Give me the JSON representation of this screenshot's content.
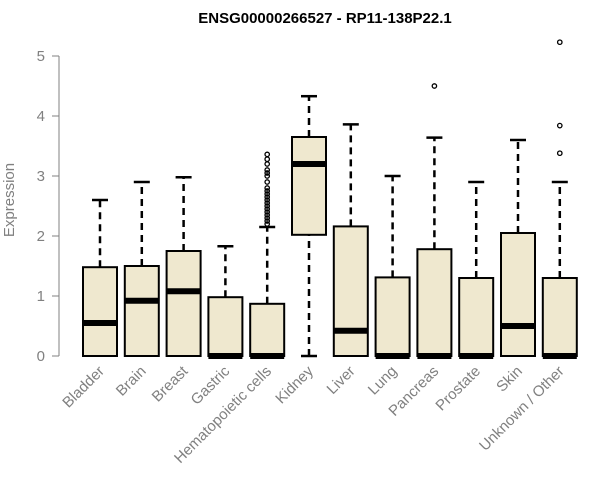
{
  "chart_data": {
    "type": "box",
    "title": "ENSG00000266527 - RP11-138P22.1",
    "ylabel": "Expression",
    "xlabel": "",
    "ylim": [
      0,
      5.3
    ],
    "yticks": [
      0,
      1,
      2,
      3,
      4,
      5
    ],
    "box_fill": "#efe8cf",
    "categories": [
      "Bladder",
      "Brain",
      "Breast",
      "Gastric",
      "Hematopoietic cells",
      "Kidney",
      "Liver",
      "Lung",
      "Pancreas",
      "Prostate",
      "Skin",
      "Unknown / Other"
    ],
    "boxes": [
      {
        "min": 0,
        "q1": 0,
        "median": 0.55,
        "q3": 1.48,
        "max": 2.6,
        "outliers": []
      },
      {
        "min": 0,
        "q1": 0,
        "median": 0.92,
        "q3": 1.5,
        "max": 2.9,
        "outliers": []
      },
      {
        "min": 0,
        "q1": 0,
        "median": 1.08,
        "q3": 1.75,
        "max": 2.98,
        "outliers": []
      },
      {
        "min": 0,
        "q1": 0,
        "median": 0.0,
        "q3": 0.98,
        "max": 1.83,
        "outliers": []
      },
      {
        "min": 0,
        "q1": 0,
        "median": 0.0,
        "q3": 0.87,
        "max": 2.15,
        "outliers": [
          2.2,
          2.25,
          2.3,
          2.35,
          2.4,
          2.45,
          2.5,
          2.55,
          2.6,
          2.65,
          2.7,
          2.75,
          2.8,
          2.9,
          3.0,
          3.05,
          3.1,
          3.2,
          3.28,
          3.36
        ]
      },
      {
        "min": 0,
        "q1": 2.02,
        "median": 3.2,
        "q3": 3.65,
        "max": 4.33,
        "outliers": []
      },
      {
        "min": 0,
        "q1": 0,
        "median": 0.42,
        "q3": 2.16,
        "max": 3.86,
        "outliers": []
      },
      {
        "min": 0,
        "q1": 0,
        "median": 0.0,
        "q3": 1.31,
        "max": 3.0,
        "outliers": []
      },
      {
        "min": 0,
        "q1": 0,
        "median": 0.0,
        "q3": 1.78,
        "max": 3.64,
        "outliers": [
          4.5
        ]
      },
      {
        "min": 0,
        "q1": 0,
        "median": 0.0,
        "q3": 1.3,
        "max": 2.9,
        "outliers": []
      },
      {
        "min": 0,
        "q1": 0,
        "median": 0.5,
        "q3": 2.05,
        "max": 3.6,
        "outliers": []
      },
      {
        "min": 0,
        "q1": 0,
        "median": 0.0,
        "q3": 1.3,
        "max": 2.9,
        "outliers": [
          3.38,
          3.84,
          5.23
        ]
      }
    ]
  }
}
